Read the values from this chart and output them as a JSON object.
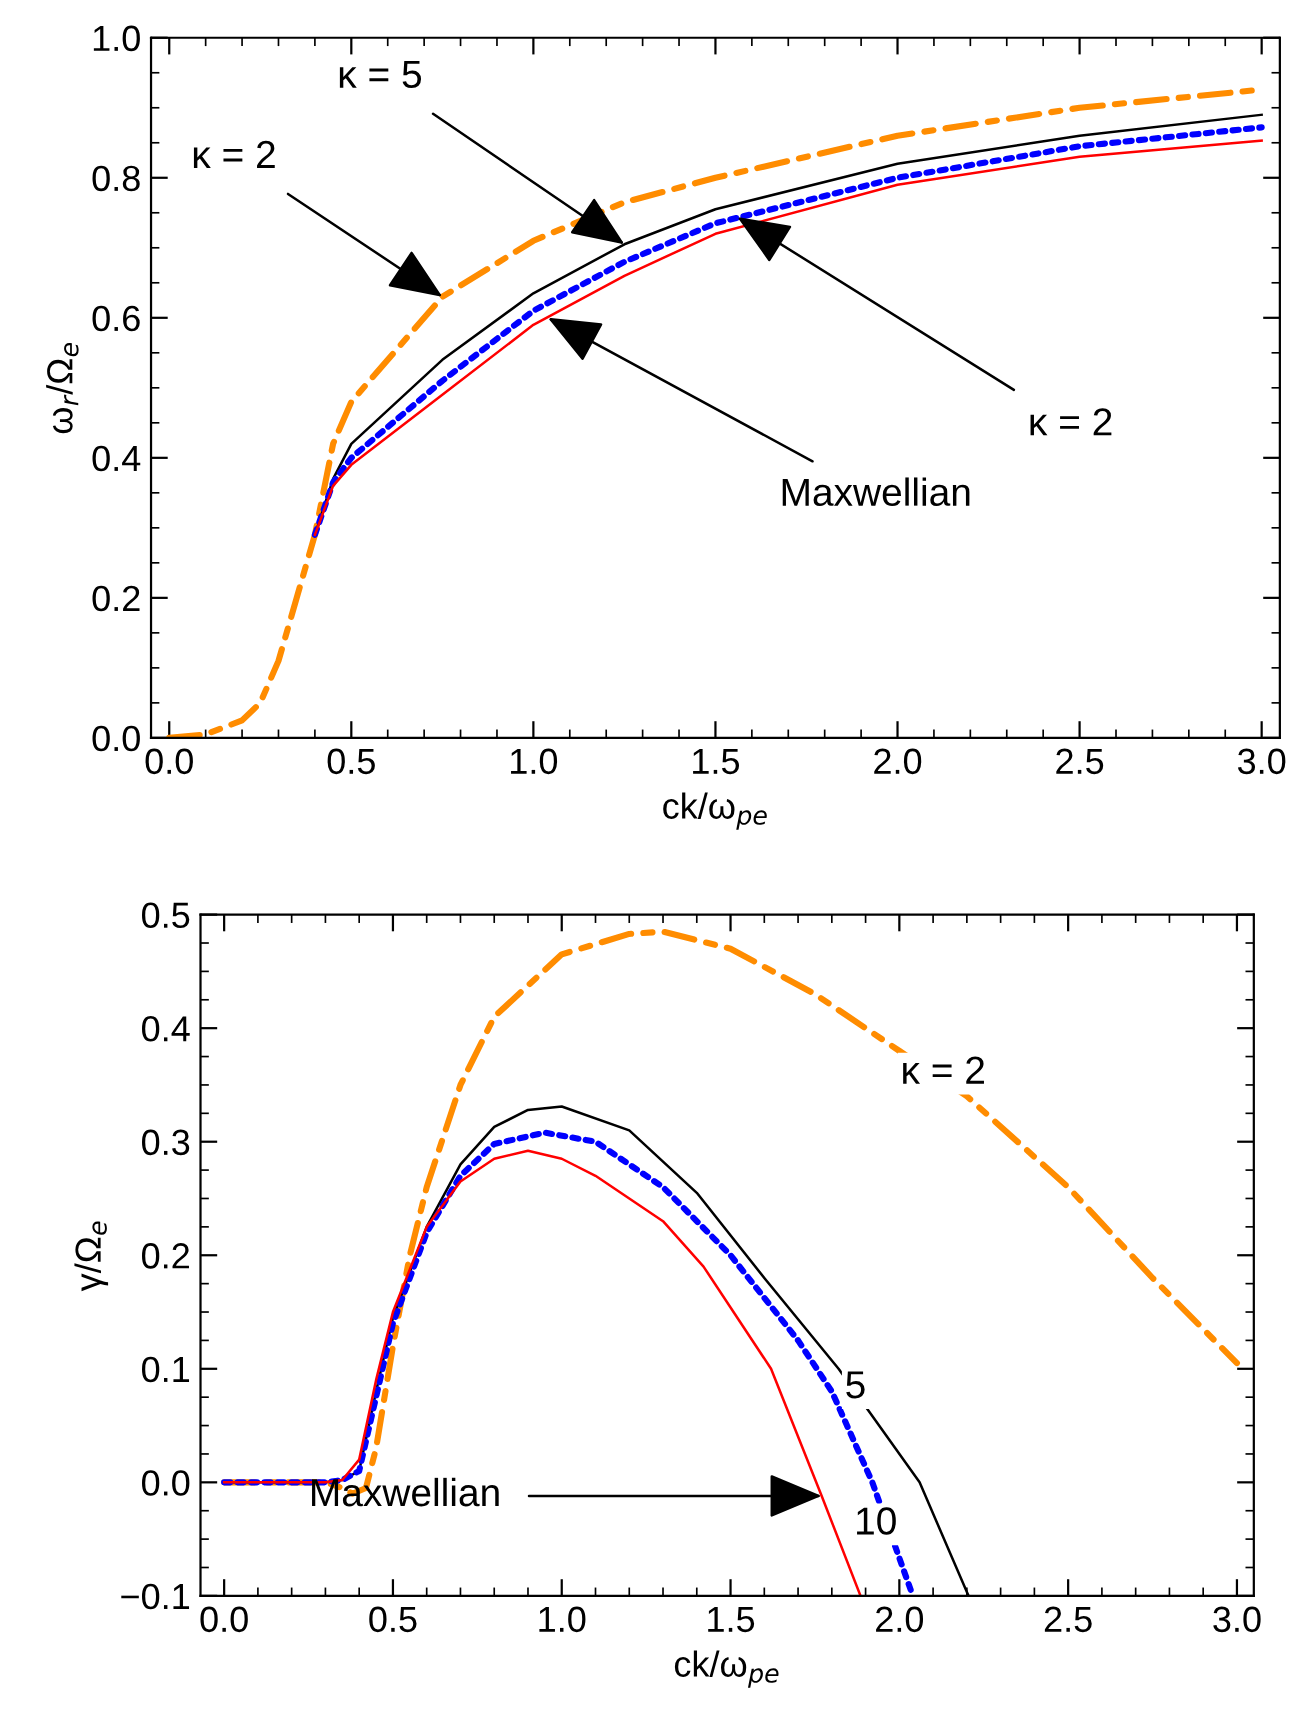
{
  "chart_data": [
    {
      "type": "line",
      "xlabel": "ck/ω$_{pe}$",
      "ylabel": "ω$_{r}$/Ω$_{e}$",
      "xlim": [
        -0.05,
        3.05
      ],
      "ylim": [
        0,
        1.0
      ],
      "xticks": [
        {
          "value": 0,
          "label": "0.0"
        },
        0.5,
        {
          "value": 1,
          "label": "1.0"
        },
        1.5,
        {
          "value": 2,
          "label": "2.0"
        },
        2.5,
        {
          "value": 3,
          "label": "3.0"
        }
      ],
      "yticks": [
        {
          "value": 0,
          "label": "0.0"
        },
        0.2,
        0.4,
        0.6,
        0.8,
        {
          "value": 1,
          "label": "1.0"
        }
      ],
      "grid": false,
      "legend": false,
      "series": [
        {
          "color": "#ff0000",
          "line_style": "solid",
          "x": [
            0.4,
            0.45,
            0.5,
            0.75,
            1.0,
            1.25,
            1.5,
            2.0,
            2.5,
            3.0
          ],
          "values": [
            0.29,
            0.36,
            0.39,
            0.49,
            0.59,
            0.66,
            0.72,
            0.79,
            0.83,
            0.853
          ]
        },
        {
          "color": "#0000ff",
          "line_style": "dotted",
          "x": [
            0.4,
            0.45,
            0.5,
            0.75,
            1.0,
            1.25,
            1.5,
            2.0,
            2.5,
            3.0
          ],
          "values": [
            0.29,
            0.365,
            0.4,
            0.51,
            0.61,
            0.68,
            0.735,
            0.8,
            0.845,
            0.872
          ]
        },
        {
          "color": "#000000",
          "line_style": "solid",
          "x": [
            0.4,
            0.45,
            0.5,
            0.75,
            1.0,
            1.25,
            1.5,
            2.0,
            2.5,
            3.0
          ],
          "values": [
            0.29,
            0.37,
            0.42,
            0.54,
            0.635,
            0.705,
            0.755,
            0.82,
            0.86,
            0.89
          ]
        },
        {
          "color": "#ff8c00",
          "line_style": "dashdot",
          "x": [
            0,
            0.1,
            0.2,
            0.25,
            0.3,
            0.35,
            0.4,
            0.45,
            0.5,
            0.55,
            0.75,
            1.0,
            1.25,
            1.5,
            2.0,
            2.5,
            3.0
          ],
          "values": [
            0,
            0.005,
            0.025,
            0.05,
            0.11,
            0.2,
            0.29,
            0.42,
            0.48,
            0.51,
            0.63,
            0.71,
            0.765,
            0.8,
            0.86,
            0.9,
            0.926
          ]
        }
      ],
      "annotations": [
        {
          "text": "κ = 5",
          "x": 1.25,
          "y": 0.705
        },
        {
          "text": "κ = 2",
          "x": 0.75,
          "y": 0.63
        },
        {
          "text": "κ = 2",
          "x": 1.56,
          "y": 0.744
        },
        {
          "text": "Maxwellian",
          "x": 1.04,
          "y": 0.6
        }
      ]
    },
    {
      "type": "line",
      "xlabel": "ck/ω$_{pe}$",
      "ylabel": "γ/Ω$_{e}$",
      "xlim": [
        -0.07,
        3.05
      ],
      "ylim": [
        -0.1,
        0.5
      ],
      "xticks": [
        {
          "value": 0,
          "label": "0.0"
        },
        0.5,
        {
          "value": 1,
          "label": "1.0"
        },
        1.5,
        {
          "value": 2,
          "label": "2.0"
        },
        2.5,
        {
          "value": 3,
          "label": "3.0"
        }
      ],
      "yticks": [
        {
          "value": -0.1,
          "label": "−0.1"
        },
        {
          "value": 0,
          "label": "0.0"
        },
        0.1,
        0.2,
        0.3,
        0.4,
        0.5
      ],
      "grid": false,
      "legend": false,
      "series": [
        {
          "color": "#ff0000",
          "line_style": "solid",
          "x": [
            0,
            0.3,
            0.35,
            0.4,
            0.45,
            0.5,
            0.6,
            0.7,
            0.8,
            0.9,
            1.0,
            1.1,
            1.3,
            1.42,
            1.62,
            1.77,
            1.885
          ],
          "values": [
            0,
            0,
            0.002,
            0.02,
            0.09,
            0.15,
            0.225,
            0.265,
            0.285,
            0.292,
            0.285,
            0.27,
            0.23,
            0.19,
            0.1,
            -0.012,
            -0.1
          ]
        },
        {
          "color": "#0000ff",
          "line_style": "dotted",
          "x": [
            0,
            0.3,
            0.35,
            0.4,
            0.45,
            0.5,
            0.6,
            0.7,
            0.8,
            0.95,
            1.1,
            1.3,
            1.5,
            1.7,
            1.8,
            1.92,
            2.04
          ],
          "values": [
            0,
            0,
            0.002,
            0.01,
            0.075,
            0.14,
            0.22,
            0.27,
            0.298,
            0.308,
            0.3,
            0.26,
            0.2,
            0.125,
            0.08,
            0.0,
            -0.1
          ]
        },
        {
          "color": "#000000",
          "line_style": "solid",
          "x": [
            0,
            0.3,
            0.35,
            0.4,
            0.45,
            0.5,
            0.6,
            0.7,
            0.8,
            0.9,
            1.0,
            1.2,
            1.4,
            1.6,
            1.82,
            2.06,
            2.205
          ],
          "values": [
            0,
            0,
            0.002,
            0.01,
            0.08,
            0.145,
            0.225,
            0.28,
            0.313,
            0.328,
            0.331,
            0.31,
            0.255,
            0.18,
            0.1,
            0.0,
            -0.1
          ]
        },
        {
          "color": "#ff8c00",
          "line_style": "dashdot",
          "x": [
            0,
            0.3,
            0.35,
            0.38,
            0.42,
            0.45,
            0.5,
            0.55,
            0.6,
            0.7,
            0.8,
            1.0,
            1.2,
            1.3,
            1.5,
            1.75,
            2.0,
            2.2,
            2.5,
            2.75,
            3.0
          ],
          "values": [
            0,
            0,
            -0.005,
            -0.01,
            -0.005,
            0.03,
            0.12,
            0.2,
            0.26,
            0.35,
            0.41,
            0.465,
            0.483,
            0.485,
            0.47,
            0.43,
            0.38,
            0.34,
            0.26,
            0.18,
            0.105
          ]
        }
      ],
      "annotations": [
        {
          "text": "κ = 2",
          "x": 2.13,
          "y": 0.36
        },
        {
          "text": "5",
          "x": 1.87,
          "y": 0.083
        },
        {
          "text": "10",
          "x": 1.93,
          "y": -0.037
        },
        {
          "text": "Maxwellian",
          "x": 1.77,
          "y": -0.012
        }
      ]
    }
  ]
}
